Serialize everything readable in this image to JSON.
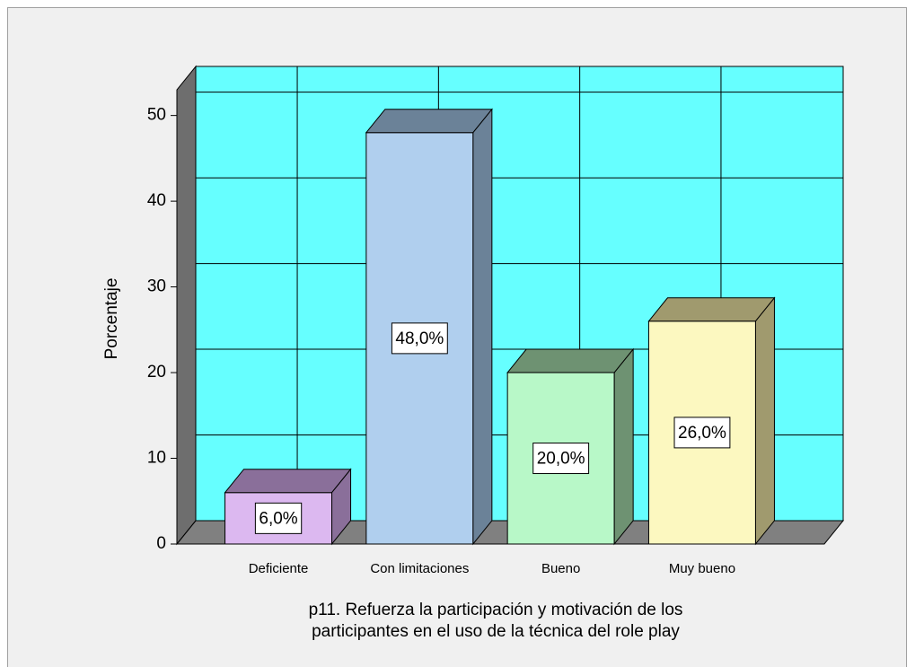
{
  "chart_data": {
    "type": "bar3d",
    "ylabel": "Porcentaje",
    "xlabel": [
      "p11. Refuerza la participación y motivación de los",
      "participantes en el uso de la técnica del role play"
    ],
    "categories": [
      "Deficiente",
      "Con limitaciones",
      "Bueno",
      "Muy bueno"
    ],
    "values": [
      6,
      48,
      20,
      26
    ],
    "value_labels": [
      "6,0%",
      "48,0%",
      "20,0%",
      "26,0%"
    ],
    "colors": [
      "#dcb8f0",
      "#b0cfee",
      "#b8f8c8",
      "#fcf8c0"
    ],
    "side_colors": [
      "#8a6f9a",
      "#6b8298",
      "#6e9272",
      "#a09a6e"
    ],
    "wall_color": "#66ffff",
    "ylim": [
      0,
      53
    ],
    "yticks": [
      0,
      10,
      20,
      30,
      40,
      50
    ],
    "grid": true
  }
}
